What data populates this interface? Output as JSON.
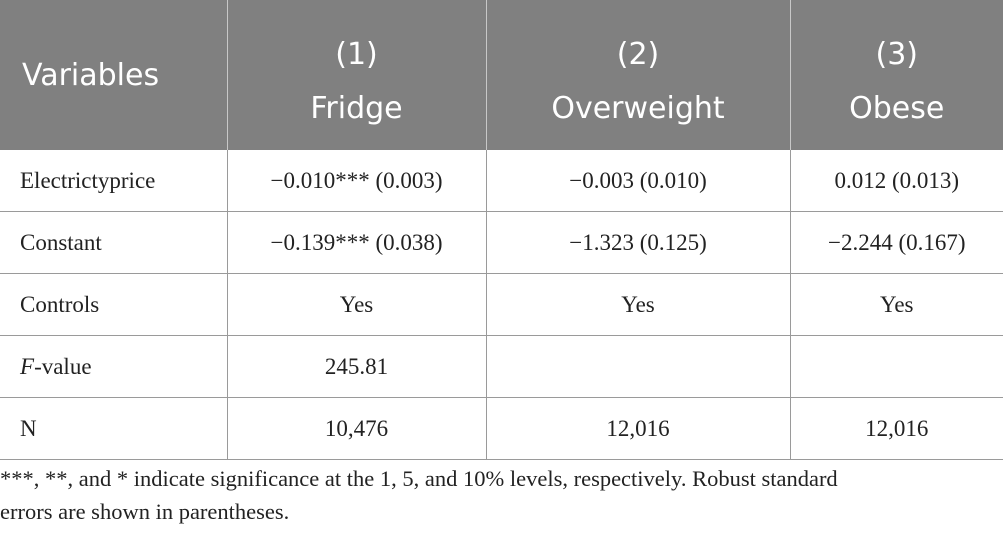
{
  "table": {
    "header": {
      "row1": [
        "Variables",
        "(1)",
        "(2)",
        "(3)"
      ],
      "row2": [
        "",
        "Fridge",
        "Overweight",
        "Obese"
      ]
    },
    "rows": [
      {
        "label": "Electrictyprice",
        "cells": [
          "−0.010*** (0.003)",
          "−0.003 (0.010)",
          "0.012 (0.013)"
        ]
      },
      {
        "label": "Constant",
        "cells": [
          "−0.139*** (0.038)",
          "−1.323 (0.125)",
          "−2.244 (0.167)"
        ]
      },
      {
        "label": "Controls",
        "cells": [
          "Yes",
          "Yes",
          "Yes"
        ]
      },
      {
        "label_italic": "F",
        "label_rest": "-value",
        "cells": [
          "245.81",
          "",
          ""
        ]
      },
      {
        "label": "N",
        "cells": [
          "10,476",
          "12,016",
          "12,016"
        ]
      }
    ]
  },
  "note": {
    "line1": "***, **, and * indicate significance at the 1, 5, and 10% levels, respectively. Robust standard",
    "line2": "errors are shown in parentheses."
  },
  "colors": {
    "header_bg": "#808080",
    "header_text": "#ffffff",
    "grid": "#9a9a9a",
    "body_text": "#222222"
  }
}
